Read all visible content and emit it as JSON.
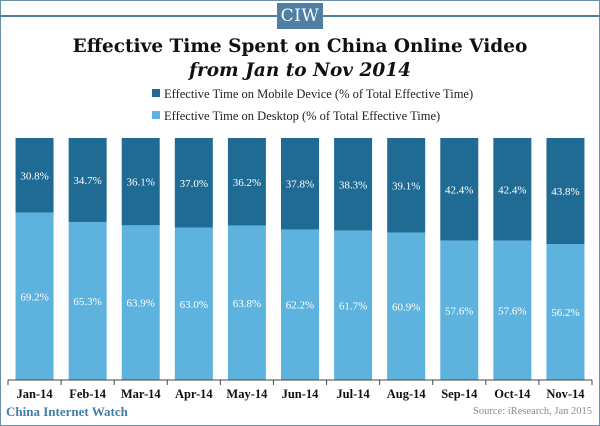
{
  "header": {
    "logo_text": "CIW",
    "accent": "#4f7fa3"
  },
  "footer": {
    "brand": "China Internet Watch",
    "source": "Source: iResearch, Jan 2015"
  },
  "chart_data": {
    "type": "bar",
    "stacked": true,
    "percent": true,
    "title": "Effective Time Spent on China Online Video",
    "subtitle": "from Jan to Nov 2014",
    "xlabel": "",
    "ylabel": "",
    "ylim": [
      0,
      100
    ],
    "grid": false,
    "legend_position": "top",
    "categories": [
      "Jan-14",
      "Feb-14",
      "Mar-14",
      "Apr-14",
      "May-14",
      "Jun-14",
      "Jul-14",
      "Aug-14",
      "Sep-14",
      "Oct-14",
      "Nov-14"
    ],
    "series": [
      {
        "name": "Effective Time on Mobile Device (% of Total Effective Time)",
        "color": "#1f6b94",
        "values": [
          30.8,
          34.7,
          36.1,
          37.0,
          36.2,
          37.8,
          38.3,
          39.1,
          42.4,
          42.4,
          43.8
        ],
        "labels": [
          "30.8%",
          "34.7%",
          "36.1%",
          "37.0%",
          "36.2%",
          "37.8%",
          "38.3%",
          "39.1%",
          "42.4%",
          "42.4%",
          "43.8%"
        ]
      },
      {
        "name": "Effective Time on Desktop (% of Total Effective Time)",
        "color": "#5db3dd",
        "values": [
          69.2,
          65.3,
          63.9,
          63.0,
          63.8,
          62.2,
          61.7,
          60.9,
          57.6,
          57.6,
          56.2
        ],
        "labels": [
          "69.2%",
          "65.3%",
          "63.9%",
          "63.0%",
          "63.8%",
          "62.2%",
          "61.7%",
          "60.9%",
          "57.6%",
          "57.6%",
          "56.2%"
        ]
      }
    ]
  }
}
